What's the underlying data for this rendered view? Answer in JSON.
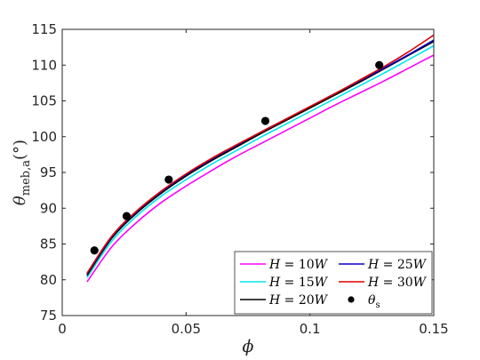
{
  "chart_data": {
    "type": "line",
    "title": "",
    "xlabel": "ϕ",
    "ylabel_main": "θ",
    "ylabel_sub": "meb,a",
    "ylabel_unit": "(°)",
    "xlim": [
      0,
      0.15
    ],
    "ylim": [
      75,
      115
    ],
    "xticks": [
      0,
      0.05,
      0.1,
      0.15
    ],
    "xtick_labels": [
      "0",
      "0.05",
      "0.1",
      "0.15"
    ],
    "yticks": [
      75,
      80,
      85,
      90,
      95,
      100,
      105,
      110,
      115
    ],
    "ytick_labels": [
      "75",
      "80",
      "85",
      "90",
      "95",
      "100",
      "105",
      "110",
      "115"
    ],
    "grid": false,
    "legend_position": "bottom-right",
    "series": [
      {
        "name": "H = 10W",
        "name_var": "H",
        "name_eq": " = 10",
        "name_unit": "W",
        "color": "#ff00ff",
        "x": [
          0.01,
          0.02,
          0.03,
          0.04,
          0.05,
          0.06,
          0.07,
          0.08,
          0.09,
          0.1,
          0.11,
          0.12,
          0.13,
          0.14,
          0.15
        ],
        "y": [
          79.7,
          84.6,
          88.0,
          90.8,
          93.1,
          95.2,
          97.2,
          99.0,
          100.8,
          102.6,
          104.4,
          106.1,
          107.8,
          109.6,
          111.4
        ]
      },
      {
        "name": "H = 15W",
        "name_var": "H",
        "name_eq": " = 15",
        "name_unit": "W",
        "color": "#00e5ee",
        "x": [
          0.01,
          0.02,
          0.03,
          0.04,
          0.05,
          0.06,
          0.07,
          0.08,
          0.09,
          0.1,
          0.11,
          0.12,
          0.13,
          0.14,
          0.15
        ],
        "y": [
          80.3,
          85.4,
          88.9,
          91.7,
          94.0,
          96.1,
          98.0,
          99.9,
          101.7,
          103.5,
          105.3,
          107.1,
          108.9,
          110.8,
          112.7
        ]
      },
      {
        "name": "H = 20W",
        "name_var": "H",
        "name_eq": " = 20",
        "name_unit": "W",
        "color": "#000000",
        "x": [
          0.01,
          0.02,
          0.03,
          0.04,
          0.05,
          0.06,
          0.07,
          0.08,
          0.09,
          0.1,
          0.11,
          0.12,
          0.13,
          0.14,
          0.15
        ],
        "y": [
          80.6,
          85.8,
          89.3,
          92.1,
          94.5,
          96.6,
          98.5,
          100.4,
          102.2,
          104.0,
          105.8,
          107.6,
          109.5,
          111.4,
          113.3
        ]
      },
      {
        "name": "H = 25W",
        "name_var": "H",
        "name_eq": " = 25",
        "name_unit": "W",
        "color": "#0000cc",
        "x": [
          0.01,
          0.02,
          0.03,
          0.04,
          0.05,
          0.06,
          0.07,
          0.08,
          0.09,
          0.1,
          0.11,
          0.12,
          0.13,
          0.14,
          0.15
        ],
        "y": [
          80.8,
          86.0,
          89.5,
          92.3,
          94.7,
          96.8,
          98.7,
          100.6,
          102.4,
          104.2,
          106.0,
          107.8,
          109.6,
          111.5,
          113.5
        ]
      },
      {
        "name": "H = 30W",
        "name_var": "H",
        "name_eq": " = 30",
        "name_unit": "W",
        "color": "#dd0000",
        "x": [
          0.01,
          0.02,
          0.03,
          0.04,
          0.05,
          0.06,
          0.07,
          0.08,
          0.09,
          0.1,
          0.11,
          0.12,
          0.13,
          0.14,
          0.15
        ],
        "y": [
          80.9,
          86.1,
          89.6,
          92.4,
          94.8,
          96.9,
          98.8,
          100.6,
          102.4,
          104.2,
          106.0,
          107.9,
          109.8,
          111.9,
          114.2
        ]
      }
    ],
    "points": {
      "name_main": "θ",
      "name_sub": "s",
      "color": "#000000",
      "x": [
        0.013,
        0.026,
        0.043,
        0.082,
        0.128
      ],
      "y": [
        84.1,
        88.9,
        94.0,
        102.2,
        110.0
      ]
    }
  }
}
